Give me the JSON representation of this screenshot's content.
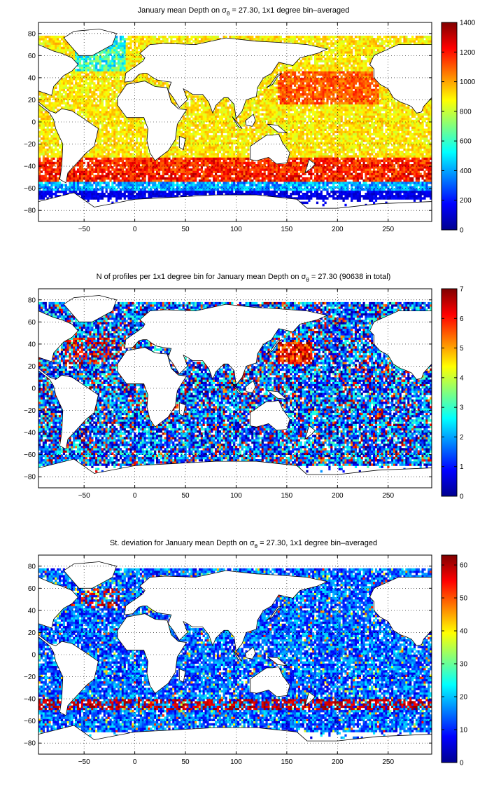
{
  "chart_data": [
    {
      "type": "heatmap",
      "title_pre": "January mean Depth on σ",
      "title_sub": "θ",
      "title_post": " = 27.30, 1x1 degree bin–averaged",
      "x_ticks": [
        "−50",
        "0",
        "50",
        "100",
        "150",
        "200",
        "250"
      ],
      "x_tick_values": [
        -50,
        0,
        50,
        100,
        150,
        200,
        250
      ],
      "y_ticks": [
        "80",
        "60",
        "40",
        "20",
        "0",
        "−20",
        "−40",
        "−60",
        "−80"
      ],
      "y_tick_values": [
        80,
        60,
        40,
        20,
        0,
        -20,
        -40,
        -60,
        -80
      ],
      "xlim": [
        -95,
        293
      ],
      "ylim": [
        -90,
        90
      ],
      "grid": true,
      "colorbar": {
        "min": 0,
        "max": 1400,
        "ticks": [
          "0",
          "200",
          "400",
          "600",
          "800",
          "1000",
          "1200",
          "1400"
        ],
        "tick_values": [
          0,
          200,
          400,
          600,
          800,
          1000,
          1200,
          1400
        ]
      }
    },
    {
      "type": "heatmap",
      "title_pre": "N of profiles per 1x1 degree bin for January mean Depth on σ",
      "title_sub": "θ",
      "title_post": " = 27.30 (90638 in total)",
      "x_ticks": [
        "−50",
        "0",
        "50",
        "100",
        "150",
        "200",
        "250"
      ],
      "x_tick_values": [
        -50,
        0,
        50,
        100,
        150,
        200,
        250
      ],
      "y_ticks": [
        "80",
        "60",
        "40",
        "20",
        "0",
        "−20",
        "−40",
        "−60",
        "−80"
      ],
      "y_tick_values": [
        80,
        60,
        40,
        20,
        0,
        -20,
        -40,
        -60,
        -80
      ],
      "xlim": [
        -95,
        293
      ],
      "ylim": [
        -90,
        90
      ],
      "grid": true,
      "colorbar": {
        "min": 0,
        "max": 7,
        "ticks": [
          "0",
          "1",
          "2",
          "3",
          "4",
          "5",
          "6",
          "7"
        ],
        "tick_values": [
          0,
          1,
          2,
          3,
          4,
          5,
          6,
          7
        ]
      }
    },
    {
      "type": "heatmap",
      "title_pre": "St. deviation for January mean Depth on σ",
      "title_sub": "θ",
      "title_post": " = 27.30, 1x1 degree bin–averaged",
      "x_ticks": [
        "−50",
        "0",
        "50",
        "100",
        "150",
        "200",
        "250"
      ],
      "x_tick_values": [
        -50,
        0,
        50,
        100,
        150,
        200,
        250
      ],
      "y_ticks": [
        "80",
        "60",
        "40",
        "20",
        "0",
        "−20",
        "−40",
        "−60",
        "−80"
      ],
      "y_tick_values": [
        80,
        60,
        40,
        20,
        0,
        -20,
        -40,
        -60,
        -80
      ],
      "xlim": [
        -95,
        293
      ],
      "ylim": [
        -90,
        90
      ],
      "grid": true,
      "colorbar": {
        "min": 0,
        "max": 63,
        "ticks": [
          "0",
          "10",
          "20",
          "30",
          "40",
          "50",
          "60"
        ],
        "tick_values": [
          0,
          10,
          20,
          30,
          40,
          50,
          60
        ]
      }
    }
  ]
}
